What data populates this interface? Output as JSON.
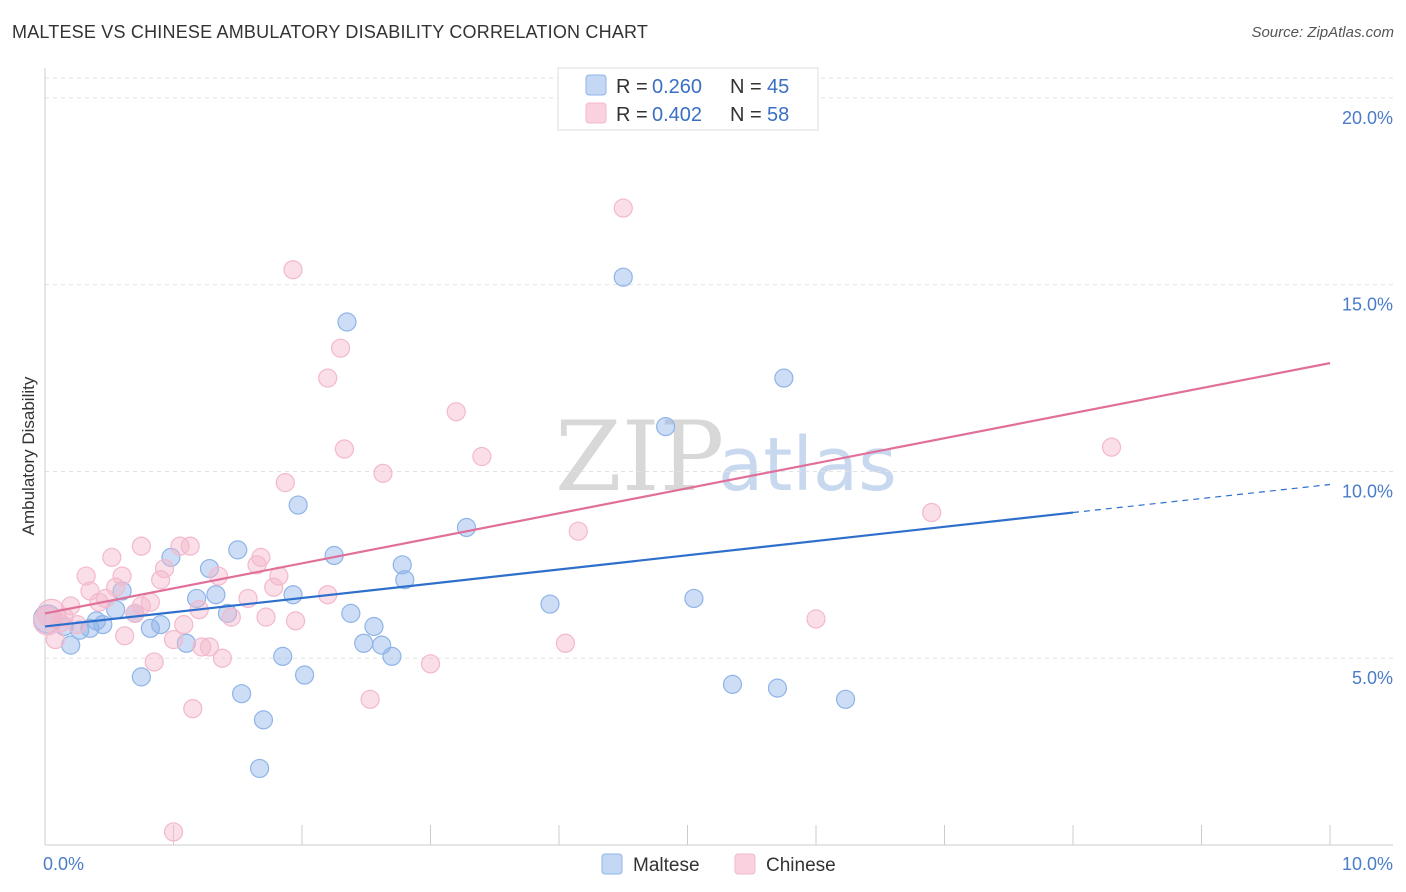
{
  "title": "MALTESE VS CHINESE AMBULATORY DISABILITY CORRELATION CHART",
  "source": "Source: ZipAtlas.com",
  "chart_data": {
    "type": "scatter",
    "title": "MALTESE VS CHINESE AMBULATORY DISABILITY CORRELATION CHART",
    "xlabel": "",
    "ylabel": "Ambulatory Disability",
    "xlim": [
      0,
      10
    ],
    "ylim": [
      0,
      20.8
    ],
    "x_ticks": [
      {
        "value": 0,
        "label": "0.0%"
      },
      {
        "value": 10,
        "label": "10.0%"
      }
    ],
    "y_ticks": [
      {
        "value": 5,
        "label": "5.0%"
      },
      {
        "value": 10,
        "label": "10.0%"
      },
      {
        "value": 15,
        "label": "15.0%"
      },
      {
        "value": 20,
        "label": "20.0%"
      }
    ],
    "grid": "horizontal dashed",
    "legend_position": "top-center",
    "series": [
      {
        "name": "Maltese",
        "color": "#8fb4e8",
        "line_color": "#2e6fcc",
        "R": "0.260",
        "N": "45",
        "trend": {
          "x0": 0,
          "y0": 5.85,
          "x1": 8.0,
          "y1": 8.9,
          "dash_to_x": 10,
          "dash_to_y": 9.65
        },
        "points": [
          [
            0.02,
            6.05
          ],
          [
            0.15,
            5.85
          ],
          [
            0.2,
            5.35
          ],
          [
            0.27,
            5.75
          ],
          [
            0.35,
            5.8
          ],
          [
            0.4,
            6.0
          ],
          [
            0.45,
            5.9
          ],
          [
            0.55,
            6.3
          ],
          [
            0.6,
            6.8
          ],
          [
            0.7,
            6.2
          ],
          [
            0.75,
            4.5
          ],
          [
            0.82,
            5.8
          ],
          [
            0.9,
            5.9
          ],
          [
            0.98,
            7.7
          ],
          [
            1.1,
            5.4
          ],
          [
            1.18,
            6.6
          ],
          [
            1.28,
            7.4
          ],
          [
            1.33,
            6.7
          ],
          [
            1.42,
            6.2
          ],
          [
            1.5,
            7.9
          ],
          [
            1.53,
            4.05
          ],
          [
            1.67,
            2.05
          ],
          [
            1.7,
            3.35
          ],
          [
            1.85,
            5.05
          ],
          [
            1.93,
            6.7
          ],
          [
            1.97,
            9.1
          ],
          [
            2.02,
            4.55
          ],
          [
            2.25,
            7.75
          ],
          [
            2.35,
            14.0
          ],
          [
            2.38,
            6.2
          ],
          [
            2.48,
            5.4
          ],
          [
            2.56,
            5.85
          ],
          [
            2.62,
            5.35
          ],
          [
            2.7,
            5.05
          ],
          [
            2.78,
            7.5
          ],
          [
            2.8,
            7.1
          ],
          [
            3.28,
            8.5
          ],
          [
            3.93,
            6.45
          ],
          [
            4.5,
            15.2
          ],
          [
            4.83,
            11.2
          ],
          [
            5.05,
            6.6
          ],
          [
            5.35,
            4.3
          ],
          [
            5.7,
            4.2
          ],
          [
            5.75,
            12.5
          ],
          [
            6.23,
            3.9
          ]
        ]
      },
      {
        "name": "Chinese",
        "color": "#f4b8cc",
        "line_color": "#e0709a",
        "R": "0.402",
        "N": "58",
        "trend": {
          "x0": 0,
          "y0": 6.2,
          "x1": 10,
          "y1": 12.9
        },
        "points": [
          [
            0.05,
            6.2
          ],
          [
            0.08,
            5.5
          ],
          [
            0.15,
            6.1
          ],
          [
            0.2,
            6.4
          ],
          [
            0.25,
            5.9
          ],
          [
            0.32,
            7.2
          ],
          [
            0.35,
            6.8
          ],
          [
            0.42,
            6.5
          ],
          [
            0.47,
            6.6
          ],
          [
            0.52,
            7.7
          ],
          [
            0.55,
            6.9
          ],
          [
            0.6,
            7.2
          ],
          [
            0.62,
            5.6
          ],
          [
            0.7,
            6.2
          ],
          [
            0.75,
            6.4
          ],
          [
            0.75,
            8.0
          ],
          [
            0.82,
            6.5
          ],
          [
            0.85,
            4.9
          ],
          [
            0.9,
            7.1
          ],
          [
            0.93,
            7.4
          ],
          [
            1.0,
            0.35
          ],
          [
            1.0,
            5.5
          ],
          [
            1.05,
            8.0
          ],
          [
            1.08,
            5.9
          ],
          [
            1.13,
            8.0
          ],
          [
            1.15,
            3.65
          ],
          [
            1.2,
            6.3
          ],
          [
            1.22,
            5.3
          ],
          [
            1.28,
            5.3
          ],
          [
            1.35,
            7.2
          ],
          [
            1.38,
            5.0
          ],
          [
            1.45,
            6.1
          ],
          [
            1.58,
            6.6
          ],
          [
            1.65,
            7.5
          ],
          [
            1.68,
            7.7
          ],
          [
            1.72,
            6.1
          ],
          [
            1.78,
            6.9
          ],
          [
            1.82,
            7.2
          ],
          [
            1.87,
            9.7
          ],
          [
            1.93,
            15.4
          ],
          [
            1.95,
            6.0
          ],
          [
            2.2,
            6.7
          ],
          [
            2.2,
            12.5
          ],
          [
            2.3,
            13.3
          ],
          [
            2.33,
            10.6
          ],
          [
            2.53,
            3.9
          ],
          [
            2.63,
            9.95
          ],
          [
            3.0,
            4.85
          ],
          [
            3.2,
            11.6
          ],
          [
            3.4,
            10.4
          ],
          [
            4.05,
            5.4
          ],
          [
            4.15,
            8.4
          ],
          [
            4.5,
            17.05
          ],
          [
            6.0,
            6.05
          ],
          [
            6.9,
            8.9
          ],
          [
            8.3,
            10.65
          ],
          [
            0.02,
            6.0
          ],
          [
            0.12,
            5.95
          ]
        ]
      }
    ]
  },
  "legend": {
    "r_label": "R =",
    "n_label": "N =",
    "maltese_R": "0.260",
    "maltese_N": "45",
    "chinese_R": "0.402",
    "chinese_N": "58"
  },
  "bottom_legend": {
    "maltese": "Maltese",
    "chinese": "Chinese"
  },
  "watermark": {
    "zip": "ZIP",
    "atlas": "atlas"
  }
}
